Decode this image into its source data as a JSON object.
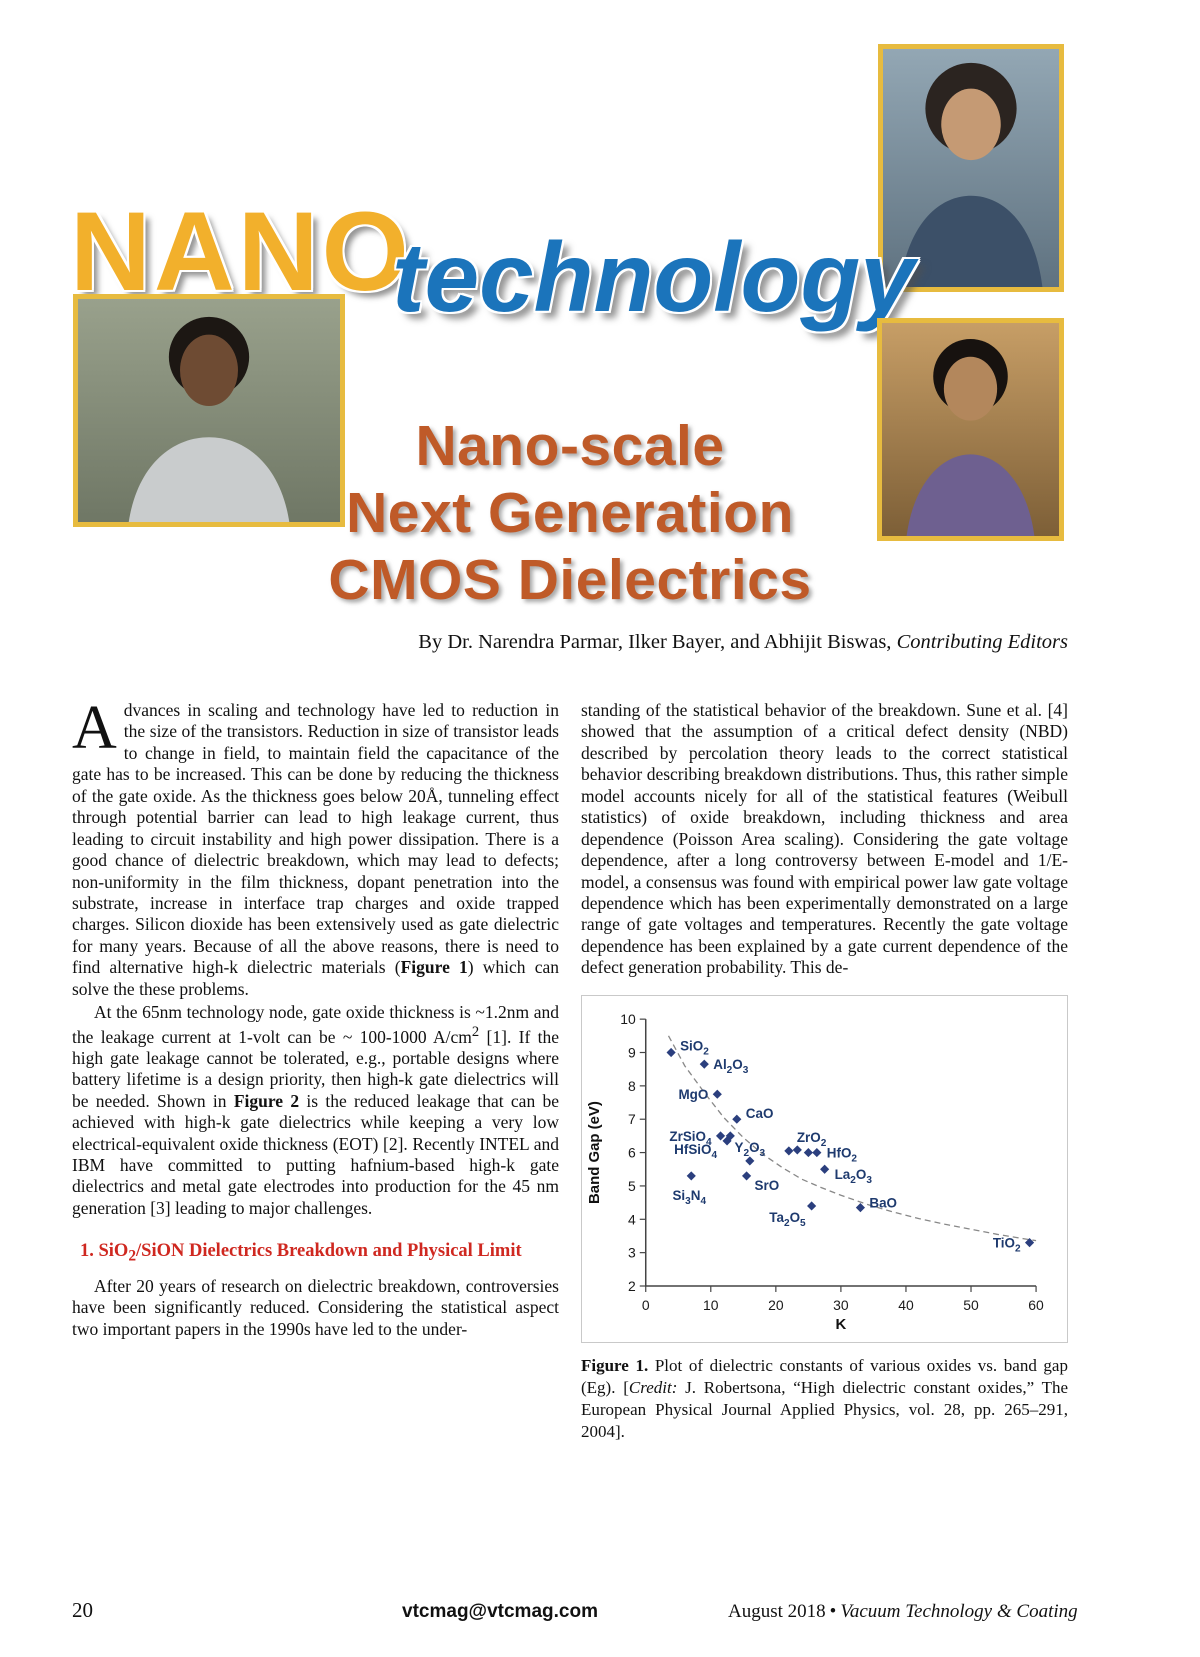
{
  "masthead": {
    "logo_primary": "NANO",
    "logo_secondary": "technology"
  },
  "title": {
    "lines": [
      "Nano-scale",
      "Next Generation",
      "CMOS Dielectrics"
    ],
    "color": "#bf5a28"
  },
  "byline": {
    "text": "By Dr. Narendra Parmar, Ilker Bayer, and Abhijit Biswas, ",
    "role_italic": "Contributing Editors"
  },
  "article": {
    "dropcap": "A",
    "p1_html": "dvances in scaling and technology have led to reduction in the size of the transistors. Reduction in size of transistor leads to change in field, to maintain field the capacitance of the gate has to be increased. This can be done by reducing the thickness of the gate oxide. As the thickness goes below 20Å, tunneling effect through potential barrier can lead to high leakage current, thus leading to circuit instability and high power dissipation. There is a good chance of dielectric breakdown, which may lead to defects; non-uniformity in the film thickness, dopant penetration into the substrate, increase in interface trap charges and oxide trapped charges. Silicon dioxide has been extensively used as gate dielectric for many years. Because of all the above reasons, there is need to find alternative high-k dielectric materials (<b>Figure 1</b>) which can solve the these problems.",
    "p2_html": "At the 65nm technology node, gate oxide thickness is ~1.2nm and the leakage current at 1-volt can be ~ 100-1000 A/cm<sup>2</sup> [1]. If the high gate leakage cannot be tolerated, e.g., portable designs where battery lifetime is a design priority, then high-k gate dielectrics will be needed. Shown in <b>Figure 2</b> is the reduced leakage that can be achieved with high-k gate dielectrics while keeping a very low electrical-equivalent oxide thickness (EOT) [2]. Recently INTEL and IBM have committed to putting hafnium-based high-k gate dielectrics and metal gate electrodes into production for the 45 nm generation [3] leading to major challenges.",
    "section1_heading_html": "1. SiO<sub>2</sub>/SiON Dielectrics Breakdown and Physical Limit",
    "p3_html": "After 20 years of research on dielectric breakdown, controversies have been significantly reduced. Considering the statistical aspect two important papers in the 1990s have led to the under-",
    "col2_p_html": "standing of the statistical behavior of the breakdown. Sune et al. [4] showed that the assumption of a critical defect density (NBD) described by percolation theory leads to the correct statistical behavior describing breakdown distributions. Thus, this rather simple model accounts nicely for all of the statistical features (Weibull statistics) of oxide breakdown, including thickness and area dependence (Poisson Area scaling). Considering the gate voltage dependence, after a long controversy between E-model and 1/E-model, a consensus was found with empirical power law gate voltage dependence which has been experimentally demonstrated on a large range of gate voltages and temperatures. Recently the gate voltage dependence has been explained by a gate current dependence of the defect generation probability. This de-"
  },
  "figure1": {
    "caption_html": "<b>Figure 1.</b> Plot of dielectric constants of various oxides vs. band gap (Eg). [<i>Credit:</i> J. Robertsona, “High dielectric constant oxides,” The European Physical Journal Applied Physics, vol. 28, pp. 265–291, 2004].",
    "chart_data": {
      "type": "scatter",
      "title": "",
      "xlabel": "K",
      "ylabel": "Band Gap (eV)",
      "xlim": [
        0,
        60
      ],
      "ylim": [
        2,
        10
      ],
      "xticks": [
        0,
        10,
        20,
        30,
        40,
        50,
        60
      ],
      "yticks": [
        2,
        3,
        4,
        5,
        6,
        7,
        8,
        9,
        10
      ],
      "grid": false,
      "marker_color": "#2b3f7e",
      "label_color": "#1e3a6e",
      "points": [
        {
          "label": "SiO2",
          "k": 3.9,
          "eg": 9.0
        },
        {
          "label": "Al2O3",
          "k": 9.0,
          "eg": 8.65
        },
        {
          "label": "MgO",
          "k": 11.0,
          "eg": 7.75
        },
        {
          "label": "CaO",
          "k": 14.0,
          "eg": 7.0
        },
        {
          "label": "ZrSiO4",
          "k": 11.5,
          "eg": 6.5
        },
        {
          "label": "HfSiO4",
          "k": 12.5,
          "eg": 6.35
        },
        {
          "label": "Y2O3",
          "k": 16.0,
          "eg": 5.75
        },
        {
          "label": "ZrO2",
          "k": 22.0,
          "eg": 6.05
        },
        {
          "label": "HfO2",
          "k": 26.3,
          "eg": 6.0
        },
        {
          "label": "La2O3",
          "k": 27.5,
          "eg": 5.5
        },
        {
          "label": "SrO",
          "k": 15.5,
          "eg": 5.3
        },
        {
          "label": "Si3N4",
          "k": 7.0,
          "eg": 5.3
        },
        {
          "label": "Ta2O5",
          "k": 25.5,
          "eg": 4.4
        },
        {
          "label": "BaO",
          "k": 33.0,
          "eg": 4.35
        },
        {
          "label": "TiO2",
          "k": 59.0,
          "eg": 3.3
        }
      ],
      "unlabeled_points": [
        [
          13.0,
          6.5
        ],
        [
          23.3,
          6.08
        ],
        [
          25.0,
          6.0
        ]
      ],
      "trend_dashed": [
        [
          3.5,
          9.5
        ],
        [
          6,
          8.6
        ],
        [
          9,
          7.8
        ],
        [
          12,
          7.05
        ],
        [
          15,
          6.45
        ],
        [
          18,
          5.95
        ],
        [
          21,
          5.55
        ],
        [
          24,
          5.2
        ],
        [
          27,
          4.95
        ],
        [
          30,
          4.72
        ],
        [
          34,
          4.45
        ],
        [
          38,
          4.22
        ],
        [
          42,
          4.02
        ],
        [
          46,
          3.85
        ],
        [
          50,
          3.7
        ],
        [
          54,
          3.55
        ],
        [
          58,
          3.42
        ],
        [
          60,
          3.36
        ]
      ]
    }
  },
  "footer": {
    "page_number": "20",
    "email": "vtcmag@vtcmag.com",
    "issue": "August 2018",
    "separator": "•",
    "magazine": "Vacuum Technology & Coating"
  }
}
